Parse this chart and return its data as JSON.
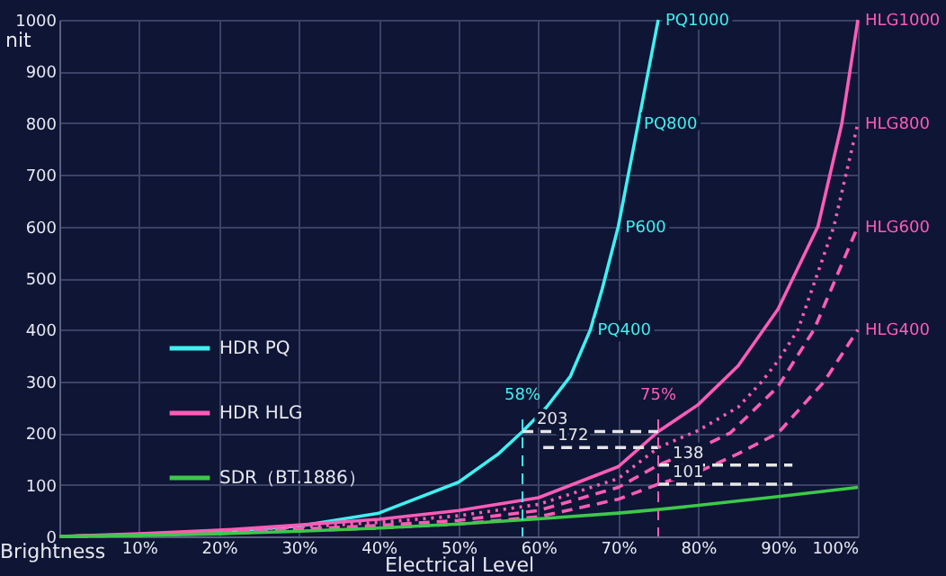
{
  "chart_data": {
    "type": "line",
    "xlabel": "Electrical Level",
    "ylabel": "Brightness",
    "xlim": [
      0,
      100
    ],
    "ylim": [
      0,
      1000
    ],
    "xticks": [
      {
        "value": 0,
        "label": null
      },
      {
        "value": 10,
        "label": "10%"
      },
      {
        "value": 20,
        "label": "20%"
      },
      {
        "value": 30,
        "label": "30%"
      },
      {
        "value": 40,
        "label": "40%"
      },
      {
        "value": 50,
        "label": "50%"
      },
      {
        "value": 60,
        "label": "60%"
      },
      {
        "value": 70,
        "label": "70%"
      },
      {
        "value": 80,
        "label": "80%"
      },
      {
        "value": 90,
        "label": "90%"
      },
      {
        "value": 100,
        "label": "100%"
      }
    ],
    "yticks": [
      0,
      100,
      200,
      300,
      400,
      500,
      600,
      700,
      800,
      900,
      {
        "value": 1000,
        "label": "1000"
      }
    ],
    "grid": true,
    "legend": "left",
    "line_style": "solid",
    "series": [
      {
        "name": "HDR PQ",
        "color": "#3ff0f0",
        "x": [
          0,
          10,
          20,
          30,
          40,
          50,
          55,
          58,
          61,
          64,
          66.5,
          68,
          70,
          72,
          75
        ],
        "values": [
          0,
          3,
          9,
          20,
          45,
          105,
          160,
          203,
          250,
          310,
          400,
          480,
          600,
          760,
          1000
        ]
      },
      {
        "name": "HDR HLG",
        "color": "#ff5cb8",
        "x": [
          0,
          10,
          20,
          30,
          40,
          50,
          60,
          70,
          75,
          80,
          85,
          90,
          95,
          98,
          100
        ],
        "values": [
          0,
          5,
          12,
          22,
          33,
          50,
          75,
          135,
          203,
          255,
          330,
          440,
          600,
          800,
          1000
        ]
      },
      {
        "color": "#ff5cb8",
        "line_style": "dotted",
        "x": [
          0,
          10,
          20,
          30,
          40,
          50,
          60,
          70,
          75,
          80,
          85,
          88,
          90,
          92.5,
          97,
          100
        ],
        "values": [
          0,
          4,
          10,
          18,
          27,
          40,
          62,
          112,
          172,
          205,
          250,
          300,
          340,
          400,
          600,
          800
        ]
      },
      {
        "color": "#ff5cb8",
        "line_style": "dashed",
        "x": [
          0,
          10,
          20,
          30,
          40,
          50,
          60,
          70,
          75,
          80,
          84,
          90,
          94.5,
          100
        ],
        "values": [
          0,
          3,
          8,
          14,
          21,
          31,
          50,
          95,
          138,
          170,
          200,
          290,
          400,
          600
        ]
      },
      {
        "color": "#ff5cb8",
        "line_style": "dashed",
        "x": [
          0,
          10,
          20,
          30,
          40,
          50,
          60,
          70,
          75,
          80,
          85,
          90,
          95.8,
          100
        ],
        "values": [
          0,
          2,
          6,
          11,
          16,
          24,
          38,
          72,
          101,
          125,
          160,
          200,
          300,
          400
        ]
      },
      {
        "name": "SDR（BT.1886）",
        "color": "#3cc94a",
        "x": [
          0,
          10,
          20,
          30,
          40,
          50,
          60,
          70,
          75,
          80,
          90,
          100
        ],
        "values": [
          0,
          2,
          5,
          10,
          16,
          24,
          34,
          45,
          52,
          60,
          77,
          95
        ]
      },
      {
        "color": "#e6e6e6",
        "line_style": "dashed",
        "x": [
          58,
          75
        ],
        "values": [
          203,
          203
        ],
        "value_labels": [
          "203",
          null
        ]
      },
      {
        "color": "#e6e6e6",
        "line_style": "dashed",
        "x": [
          60.6,
          75
        ],
        "values": [
          172,
          172
        ],
        "value_labels": [
          "172",
          null
        ]
      },
      {
        "color": "#e6e6e6",
        "line_style": "dashed",
        "x": [
          75,
          91.8
        ],
        "values": [
          138,
          138
        ],
        "value_labels": [
          "138",
          null
        ]
      },
      {
        "color": "#e6e6e6",
        "line_style": "dashed",
        "x": [
          75,
          91.8
        ],
        "values": [
          101,
          101
        ],
        "value_labels": [
          "101",
          null
        ]
      }
    ],
    "ref_lines": [
      {
        "axis": "x",
        "value": 58,
        "label": "58%",
        "color": "#3ff0f0",
        "line_style": "dashed"
      },
      {
        "axis": "x",
        "value": 75,
        "label": "75%",
        "color": "#ff5cb8",
        "line_style": "dashed"
      }
    ],
    "annotations": [
      "nit",
      {
        "text": "PQ1000",
        "x": 75,
        "y": 1000
      },
      {
        "text": "PQ800",
        "x": 72.3,
        "y": 800
      },
      {
        "text": "P600",
        "x": 70,
        "y": 600
      },
      {
        "text": "PQ400",
        "x": 66.5,
        "y": 400
      },
      {
        "text": "HLG1000",
        "x": 100,
        "y": 1000
      },
      {
        "text": "HLG800",
        "x": 100,
        "y": 800
      },
      {
        "text": "HLG600",
        "x": 100,
        "y": 600
      },
      {
        "text": "HLG400",
        "x": 100,
        "y": 400
      }
    ]
  }
}
